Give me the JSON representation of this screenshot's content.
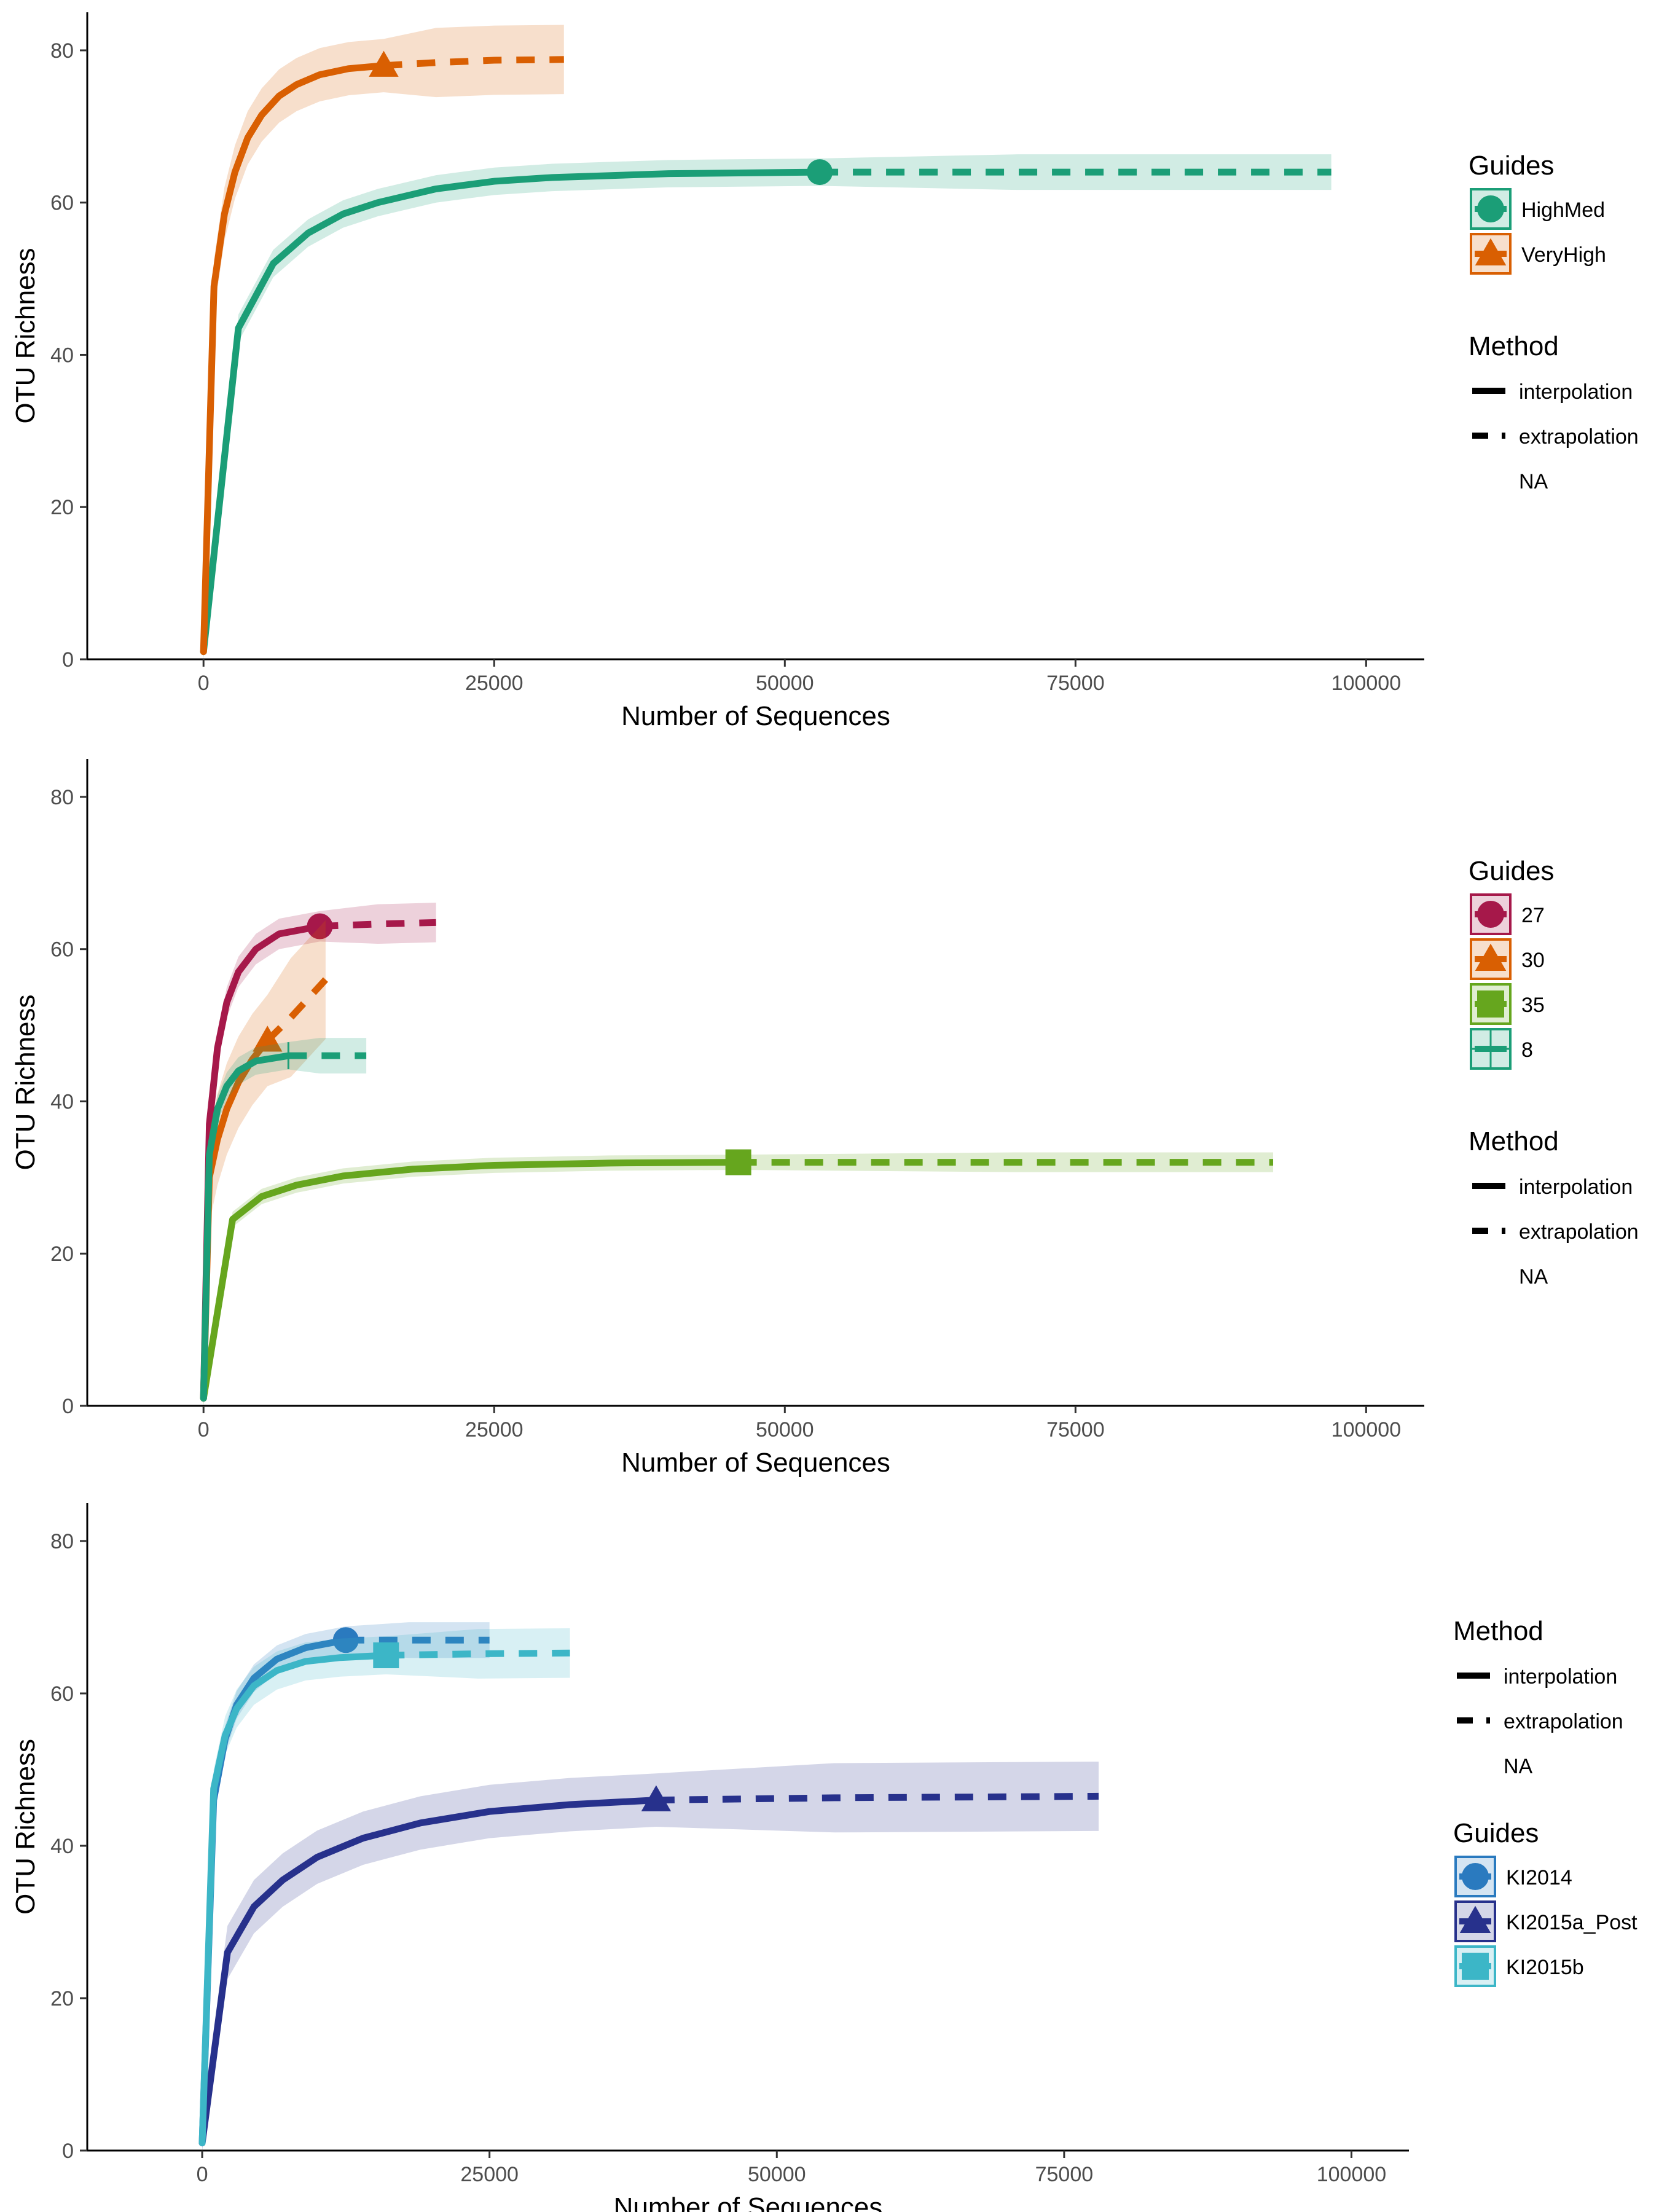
{
  "colors": {
    "HighMed": "#1b9e77",
    "VeryHigh": "#d95f02",
    "27": "#a6184a",
    "30": "#d95f02",
    "35": "#66a61e",
    "8": "#1b9e77",
    "KI2014": "#2a7abf",
    "KI2015a_Post": "#27318c",
    "KI2015b": "#3cb6c7"
  },
  "chart_data": [
    {
      "type": "line",
      "xlabel": "Number of Sequences",
      "ylabel": "OTU Richness",
      "xlim": [
        -10000,
        105000
      ],
      "ylim": [
        0,
        85
      ],
      "x_ticks": [
        "0",
        "25000",
        "50000",
        "75000",
        "100000"
      ],
      "y_ticks": [
        "0",
        "20",
        "40",
        "60",
        "80"
      ],
      "grid": false,
      "legend_position": "right",
      "legend_order": [
        "guides",
        "method"
      ],
      "legend_guides": {
        "title": "Guides",
        "items": [
          {
            "name": "HighMed",
            "shape": "circle"
          },
          {
            "name": "VeryHigh",
            "shape": "triangle"
          }
        ]
      },
      "legend_method": {
        "title": "Method",
        "items": [
          {
            "name": "interpolation",
            "style": "solid"
          },
          {
            "name": "extrapolation",
            "style": "dashed"
          },
          {
            "name": "NA",
            "style": "none"
          }
        ]
      },
      "series": [
        {
          "name": "HighMed",
          "shape": "circle",
          "observed": [
            53000,
            64
          ],
          "interpolation": [
            [
              0,
              1
            ],
            [
              3000,
              43.5
            ],
            [
              6000,
              52
            ],
            [
              9000,
              56
            ],
            [
              12000,
              58.5
            ],
            [
              15000,
              60
            ],
            [
              20000,
              61.8
            ],
            [
              25000,
              62.8
            ],
            [
              30000,
              63.3
            ],
            [
              40000,
              63.8
            ],
            [
              53000,
              64
            ]
          ],
          "extrapolation": [
            [
              53000,
              64
            ],
            [
              70000,
              64
            ],
            [
              97000,
              64
            ]
          ],
          "band": 1.8
        },
        {
          "name": "VeryHigh",
          "shape": "triangle",
          "observed": [
            15500,
            78
          ],
          "interpolation": [
            [
              0,
              1
            ],
            [
              900,
              49
            ],
            [
              1800,
              58.5
            ],
            [
              2700,
              64
            ],
            [
              3800,
              68.5
            ],
            [
              5000,
              71.5
            ],
            [
              6500,
              74
            ],
            [
              8000,
              75.5
            ],
            [
              10000,
              76.8
            ],
            [
              12500,
              77.6
            ],
            [
              15500,
              78
            ]
          ],
          "extrapolation": [
            [
              15500,
              78
            ],
            [
              20000,
              78.4
            ],
            [
              25000,
              78.7
            ],
            [
              31000,
              78.8
            ]
          ],
          "band": 3.5
        }
      ]
    },
    {
      "type": "line",
      "xlabel": "Number of Sequences",
      "ylabel": "OTU Richness",
      "xlim": [
        -10000,
        105000
      ],
      "ylim": [
        0,
        85
      ],
      "x_ticks": [
        "0",
        "25000",
        "50000",
        "75000",
        "100000"
      ],
      "y_ticks": [
        "0",
        "20",
        "40",
        "60",
        "80"
      ],
      "grid": false,
      "legend_position": "right",
      "legend_order": [
        "guides",
        "method"
      ],
      "legend_guides": {
        "title": "Guides",
        "items": [
          {
            "name": "27",
            "shape": "circle"
          },
          {
            "name": "30",
            "shape": "triangle"
          },
          {
            "name": "35",
            "shape": "square"
          },
          {
            "name": "8",
            "shape": "plus"
          }
        ]
      },
      "legend_method": {
        "title": "Method",
        "items": [
          {
            "name": "interpolation",
            "style": "solid"
          },
          {
            "name": "extrapolation",
            "style": "dashed"
          },
          {
            "name": "NA",
            "style": "none"
          }
        ]
      },
      "series": [
        {
          "name": "27",
          "shape": "circle",
          "observed": [
            10000,
            63
          ],
          "interpolation": [
            [
              0,
              1
            ],
            [
              500,
              37
            ],
            [
              1200,
              47
            ],
            [
              2000,
              53
            ],
            [
              3000,
              57
            ],
            [
              4500,
              60
            ],
            [
              6500,
              62
            ],
            [
              10000,
              63
            ]
          ],
          "extrapolation": [
            [
              10000,
              63
            ],
            [
              15000,
              63.3
            ],
            [
              20000,
              63.5
            ]
          ],
          "band": 2
        },
        {
          "name": "30",
          "shape": "triangle",
          "observed": [
            5500,
            48
          ],
          "interpolation": [
            [
              0,
              1
            ],
            [
              500,
              30
            ],
            [
              1200,
              35
            ],
            [
              2000,
              39
            ],
            [
              3000,
              42.5
            ],
            [
              4200,
              45.5
            ],
            [
              5500,
              48
            ]
          ],
          "extrapolation": [
            [
              5500,
              48
            ],
            [
              7500,
              51
            ],
            [
              10500,
              56
            ]
          ],
          "band": 6
        },
        {
          "name": "35",
          "shape": "square",
          "observed": [
            46000,
            32
          ],
          "interpolation": [
            [
              0,
              1
            ],
            [
              2500,
              24.5
            ],
            [
              5000,
              27.5
            ],
            [
              8000,
              29
            ],
            [
              12000,
              30.2
            ],
            [
              18000,
              31.1
            ],
            [
              25000,
              31.6
            ],
            [
              35000,
              31.9
            ],
            [
              46000,
              32
            ]
          ],
          "extrapolation": [
            [
              46000,
              32
            ],
            [
              70000,
              32
            ],
            [
              92000,
              32
            ]
          ],
          "band": 1
        },
        {
          "name": "8",
          "shape": "plus",
          "observed": [
            7300,
            46
          ],
          "interpolation": [
            [
              0,
              1
            ],
            [
              500,
              33
            ],
            [
              1200,
              39
            ],
            [
              2000,
              42
            ],
            [
              3000,
              44
            ],
            [
              4500,
              45.3
            ],
            [
              7300,
              46
            ]
          ],
          "extrapolation": [
            [
              7300,
              46
            ],
            [
              10000,
              46
            ],
            [
              14000,
              46
            ]
          ],
          "band": 1.8
        }
      ]
    },
    {
      "type": "line",
      "xlabel": "Number of Sequences",
      "ylabel": "OTU Richness",
      "xlim": [
        -10000,
        105000
      ],
      "ylim": [
        0,
        85
      ],
      "x_ticks": [
        "0",
        "25000",
        "50000",
        "75000",
        "100000"
      ],
      "y_ticks": [
        "0",
        "20",
        "40",
        "60",
        "80"
      ],
      "grid": false,
      "legend_position": "right",
      "legend_order": [
        "method",
        "guides"
      ],
      "legend_guides": {
        "title": "Guides",
        "items": [
          {
            "name": "KI2014",
            "shape": "circle"
          },
          {
            "name": "KI2015a_Post",
            "shape": "triangle"
          },
          {
            "name": "KI2015b",
            "shape": "square"
          }
        ]
      },
      "legend_method": {
        "title": "Method",
        "items": [
          {
            "name": "interpolation",
            "style": "solid"
          },
          {
            "name": "extrapolation",
            "style": "dashed"
          },
          {
            "name": "NA",
            "style": "none"
          }
        ]
      },
      "series": [
        {
          "name": "KI2014",
          "shape": "circle",
          "observed": [
            12500,
            67
          ],
          "interpolation": [
            [
              0,
              1
            ],
            [
              1000,
              46
            ],
            [
              2000,
              54
            ],
            [
              3000,
              58.5
            ],
            [
              4500,
              62
            ],
            [
              6500,
              64.5
            ],
            [
              9000,
              66
            ],
            [
              12500,
              67
            ]
          ],
          "extrapolation": [
            [
              12500,
              67
            ],
            [
              18000,
              67
            ],
            [
              25000,
              67
            ]
          ],
          "band": 1.8
        },
        {
          "name": "KI2015a_Post",
          "shape": "triangle",
          "observed": [
            39500,
            46
          ],
          "interpolation": [
            [
              0,
              1
            ],
            [
              2200,
              26
            ],
            [
              4500,
              32
            ],
            [
              7000,
              35.5
            ],
            [
              10000,
              38.5
            ],
            [
              14000,
              41
            ],
            [
              19000,
              43
            ],
            [
              25000,
              44.5
            ],
            [
              32000,
              45.4
            ],
            [
              39500,
              46
            ]
          ],
          "extrapolation": [
            [
              39500,
              46
            ],
            [
              55000,
              46.3
            ],
            [
              78000,
              46.5
            ]
          ],
          "band": 3.5
        },
        {
          "name": "KI2015b",
          "shape": "square",
          "observed": [
            16000,
            65
          ],
          "interpolation": [
            [
              0,
              1
            ],
            [
              1000,
              47.5
            ],
            [
              2000,
              54.5
            ],
            [
              3000,
              58
            ],
            [
              4500,
              61
            ],
            [
              6500,
              63
            ],
            [
              9000,
              64.2
            ],
            [
              12000,
              64.7
            ],
            [
              16000,
              65
            ]
          ],
          "extrapolation": [
            [
              16000,
              65
            ],
            [
              24000,
              65.2
            ],
            [
              32000,
              65.3
            ]
          ],
          "band": 2.5
        }
      ]
    }
  ]
}
